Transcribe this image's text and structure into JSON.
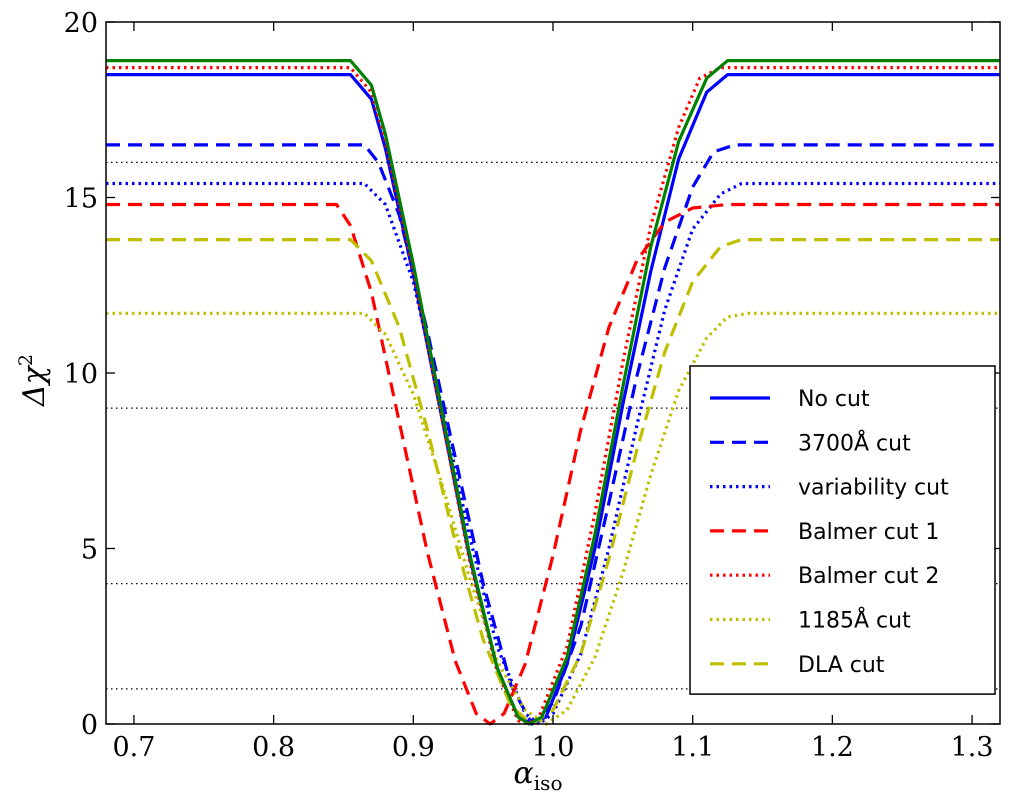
{
  "chart_data": {
    "type": "line",
    "xlabel": "α",
    "xlabel_sub": "iso",
    "ylabel": "Δχ",
    "ylabel_sup": "2",
    "xlim": [
      0.68,
      1.32
    ],
    "ylim": [
      0,
      20
    ],
    "xticks": [
      0.7,
      0.8,
      0.9,
      1.0,
      1.1,
      1.2,
      1.3
    ],
    "xtick_labels": [
      "0.7",
      "0.8",
      "0.9",
      "1.0",
      "1.1",
      "1.2",
      "1.3"
    ],
    "yticks": [
      0,
      5,
      10,
      15,
      20
    ],
    "ytick_labels": [
      "0",
      "5",
      "10",
      "15",
      "20"
    ],
    "hlines": [
      1,
      4,
      9,
      16
    ],
    "legend_position": "center-right",
    "series": [
      {
        "name": "No cut",
        "color": "#0000ff",
        "style": "solid",
        "points": [
          [
            0.68,
            18.5
          ],
          [
            0.855,
            18.5
          ],
          [
            0.87,
            17.8
          ],
          [
            0.88,
            16.4
          ],
          [
            0.9,
            12.8
          ],
          [
            0.92,
            8.8
          ],
          [
            0.94,
            4.8
          ],
          [
            0.96,
            1.6
          ],
          [
            0.975,
            0.2
          ],
          [
            0.985,
            0.0
          ],
          [
            0.995,
            0.2
          ],
          [
            1.01,
            1.7
          ],
          [
            1.03,
            5.0
          ],
          [
            1.05,
            9.1
          ],
          [
            1.07,
            12.9
          ],
          [
            1.09,
            16.1
          ],
          [
            1.11,
            18.0
          ],
          [
            1.125,
            18.5
          ],
          [
            1.32,
            18.5
          ]
        ]
      },
      {
        "name": "3700Å cut",
        "color": "#0000ff",
        "style": "dashed",
        "points": [
          [
            0.68,
            16.5
          ],
          [
            0.865,
            16.5
          ],
          [
            0.875,
            16.0
          ],
          [
            0.89,
            14.5
          ],
          [
            0.91,
            11.2
          ],
          [
            0.93,
            7.6
          ],
          [
            0.95,
            4.0
          ],
          [
            0.97,
            1.1
          ],
          [
            0.985,
            0.0
          ],
          [
            1.0,
            0.6
          ],
          [
            1.02,
            2.8
          ],
          [
            1.04,
            6.3
          ],
          [
            1.06,
            9.9
          ],
          [
            1.08,
            13.0
          ],
          [
            1.1,
            15.3
          ],
          [
            1.115,
            16.3
          ],
          [
            1.13,
            16.5
          ],
          [
            1.32,
            16.5
          ]
        ]
      },
      {
        "name": "variability cut",
        "color": "#0000ff",
        "style": "dotted",
        "points": [
          [
            0.68,
            15.4
          ],
          [
            0.865,
            15.4
          ],
          [
            0.88,
            14.8
          ],
          [
            0.9,
            12.6
          ],
          [
            0.92,
            9.1
          ],
          [
            0.94,
            5.4
          ],
          [
            0.96,
            2.2
          ],
          [
            0.98,
            0.3
          ],
          [
            0.99,
            0.0
          ],
          [
            1.0,
            0.3
          ],
          [
            1.02,
            2.0
          ],
          [
            1.04,
            5.0
          ],
          [
            1.06,
            8.5
          ],
          [
            1.08,
            11.8
          ],
          [
            1.1,
            14.1
          ],
          [
            1.12,
            15.1
          ],
          [
            1.135,
            15.4
          ],
          [
            1.32,
            15.4
          ]
        ]
      },
      {
        "name": "Balmer cut 1",
        "color": "#ff0000",
        "style": "dashed",
        "points": [
          [
            0.68,
            14.8
          ],
          [
            0.845,
            14.8
          ],
          [
            0.855,
            14.2
          ],
          [
            0.87,
            12.3
          ],
          [
            0.89,
            8.6
          ],
          [
            0.91,
            4.9
          ],
          [
            0.93,
            1.8
          ],
          [
            0.945,
            0.3
          ],
          [
            0.955,
            0.0
          ],
          [
            0.965,
            0.3
          ],
          [
            0.98,
            1.7
          ],
          [
            1.0,
            4.8
          ],
          [
            1.02,
            8.4
          ],
          [
            1.04,
            11.3
          ],
          [
            1.06,
            13.2
          ],
          [
            1.08,
            14.3
          ],
          [
            1.1,
            14.7
          ],
          [
            1.125,
            14.8
          ],
          [
            1.32,
            14.8
          ]
        ]
      },
      {
        "name": "Balmer cut 2",
        "color": "#ff0000",
        "style": "dotted",
        "points": [
          [
            0.68,
            18.7
          ],
          [
            0.855,
            18.7
          ],
          [
            0.87,
            18.0
          ],
          [
            0.88,
            16.6
          ],
          [
            0.9,
            12.9
          ],
          [
            0.92,
            8.8
          ],
          [
            0.94,
            4.7
          ],
          [
            0.96,
            1.5
          ],
          [
            0.975,
            0.1
          ],
          [
            0.982,
            0.0
          ],
          [
            0.99,
            0.2
          ],
          [
            1.01,
            2.2
          ],
          [
            1.03,
            6.0
          ],
          [
            1.05,
            10.3
          ],
          [
            1.07,
            14.2
          ],
          [
            1.09,
            17.0
          ],
          [
            1.105,
            18.4
          ],
          [
            1.12,
            18.7
          ],
          [
            1.32,
            18.7
          ]
        ]
      },
      {
        "name": "1185Å cut",
        "color": "#bfbf00",
        "style": "dotted",
        "points": [
          [
            0.68,
            11.7
          ],
          [
            0.865,
            11.7
          ],
          [
            0.88,
            11.1
          ],
          [
            0.9,
            9.4
          ],
          [
            0.92,
            6.9
          ],
          [
            0.94,
            4.2
          ],
          [
            0.96,
            1.8
          ],
          [
            0.98,
            0.4
          ],
          [
            0.995,
            0.0
          ],
          [
            1.01,
            0.4
          ],
          [
            1.03,
            1.9
          ],
          [
            1.05,
            4.3
          ],
          [
            1.07,
            7.1
          ],
          [
            1.09,
            9.5
          ],
          [
            1.11,
            11.0
          ],
          [
            1.125,
            11.6
          ],
          [
            1.14,
            11.7
          ],
          [
            1.32,
            11.7
          ]
        ]
      },
      {
        "name": "DLA cut",
        "color": "#bfbf00",
        "style": "dashed",
        "points": [
          [
            0.68,
            13.8
          ],
          [
            0.855,
            13.8
          ],
          [
            0.87,
            13.2
          ],
          [
            0.89,
            11.3
          ],
          [
            0.91,
            8.4
          ],
          [
            0.93,
            5.2
          ],
          [
            0.95,
            2.4
          ],
          [
            0.97,
            0.5
          ],
          [
            0.985,
            0.0
          ],
          [
            1.0,
            0.4
          ],
          [
            1.02,
            2.0
          ],
          [
            1.04,
            4.7
          ],
          [
            1.06,
            7.8
          ],
          [
            1.08,
            10.6
          ],
          [
            1.1,
            12.6
          ],
          [
            1.12,
            13.6
          ],
          [
            1.135,
            13.8
          ],
          [
            1.32,
            13.8
          ]
        ]
      },
      {
        "name": "",
        "color": "#008000",
        "style": "solid",
        "points": [
          [
            0.68,
            18.9
          ],
          [
            0.855,
            18.9
          ],
          [
            0.87,
            18.2
          ],
          [
            0.88,
            16.8
          ],
          [
            0.9,
            13.1
          ],
          [
            0.92,
            9.0
          ],
          [
            0.94,
            4.9
          ],
          [
            0.96,
            1.6
          ],
          [
            0.975,
            0.2
          ],
          [
            0.983,
            0.0
          ],
          [
            0.992,
            0.2
          ],
          [
            1.01,
            1.9
          ],
          [
            1.03,
            5.4
          ],
          [
            1.05,
            9.6
          ],
          [
            1.07,
            13.6
          ],
          [
            1.09,
            16.6
          ],
          [
            1.11,
            18.4
          ],
          [
            1.125,
            18.9
          ],
          [
            1.32,
            18.9
          ]
        ]
      }
    ]
  }
}
